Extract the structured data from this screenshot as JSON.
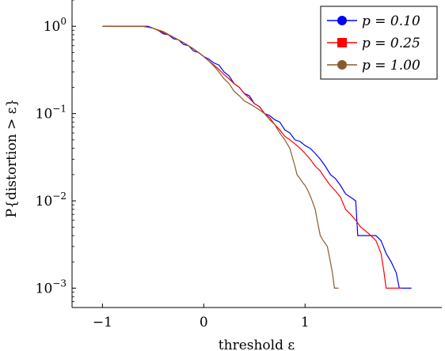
{
  "chart_data": {
    "type": "line",
    "title": "",
    "xlabel": "threshold ε",
    "ylabel": "P{distortion > ε}",
    "y_scale": "log",
    "xlim": [
      -1.3,
      2.35
    ],
    "ylim": [
      0.0006,
      2.0
    ],
    "x_ticks": [
      {
        "value": -1,
        "label": "−1"
      },
      {
        "value": 0,
        "label": "0"
      },
      {
        "value": 1,
        "label": "1"
      }
    ],
    "y_ticks": [
      {
        "value": 1,
        "base": "10",
        "exp": "0"
      },
      {
        "value": 0.1,
        "base": "10",
        "exp": "−1"
      },
      {
        "value": 0.01,
        "base": "10",
        "exp": "−2"
      },
      {
        "value": 0.001,
        "base": "10",
        "exp": "−3"
      }
    ],
    "grid": false,
    "legend_position": "top-right",
    "series": [
      {
        "name": "p = 0.10",
        "color": "#0000ff",
        "marker": "circle",
        "points": [
          [
            -1.0,
            1.0
          ],
          [
            -0.55,
            1.0
          ],
          [
            -0.5,
            0.95
          ],
          [
            -0.45,
            0.9
          ],
          [
            -0.4,
            0.82
          ],
          [
            -0.35,
            0.8
          ],
          [
            -0.3,
            0.72
          ],
          [
            -0.25,
            0.7
          ],
          [
            -0.2,
            0.62
          ],
          [
            -0.15,
            0.6
          ],
          [
            -0.1,
            0.52
          ],
          [
            -0.05,
            0.5
          ],
          [
            0.0,
            0.45
          ],
          [
            0.05,
            0.42
          ],
          [
            0.1,
            0.38
          ],
          [
            0.15,
            0.36
          ],
          [
            0.2,
            0.3
          ],
          [
            0.25,
            0.27
          ],
          [
            0.3,
            0.22
          ],
          [
            0.35,
            0.2
          ],
          [
            0.4,
            0.17
          ],
          [
            0.45,
            0.16
          ],
          [
            0.5,
            0.13
          ],
          [
            0.55,
            0.12
          ],
          [
            0.6,
            0.1
          ],
          [
            0.65,
            0.095
          ],
          [
            0.7,
            0.085
          ],
          [
            0.75,
            0.08
          ],
          [
            0.8,
            0.065
          ],
          [
            0.85,
            0.06
          ],
          [
            0.9,
            0.05
          ],
          [
            0.95,
            0.048
          ],
          [
            1.0,
            0.043
          ],
          [
            1.05,
            0.04
          ],
          [
            1.1,
            0.035
          ],
          [
            1.15,
            0.03
          ],
          [
            1.2,
            0.025
          ],
          [
            1.25,
            0.02
          ],
          [
            1.3,
            0.018
          ],
          [
            1.35,
            0.015
          ],
          [
            1.4,
            0.012
          ],
          [
            1.45,
            0.011
          ],
          [
            1.5,
            0.01
          ],
          [
            1.52,
            0.004
          ],
          [
            1.7,
            0.004
          ],
          [
            1.75,
            0.0035
          ],
          [
            1.8,
            0.0025
          ],
          [
            1.85,
            0.002
          ],
          [
            1.9,
            0.0015
          ],
          [
            1.93,
            0.001
          ],
          [
            2.05,
            0.001
          ]
        ]
      },
      {
        "name": "p = 0.25",
        "color": "#ff0000",
        "marker": "square",
        "points": [
          [
            -1.0,
            1.0
          ],
          [
            -0.6,
            1.0
          ],
          [
            -0.5,
            0.95
          ],
          [
            -0.4,
            0.85
          ],
          [
            -0.3,
            0.75
          ],
          [
            -0.2,
            0.65
          ],
          [
            -0.1,
            0.55
          ],
          [
            0.0,
            0.45
          ],
          [
            0.05,
            0.4
          ],
          [
            0.1,
            0.36
          ],
          [
            0.15,
            0.32
          ],
          [
            0.2,
            0.28
          ],
          [
            0.25,
            0.25
          ],
          [
            0.3,
            0.22
          ],
          [
            0.35,
            0.2
          ],
          [
            0.4,
            0.17
          ],
          [
            0.45,
            0.15
          ],
          [
            0.5,
            0.13
          ],
          [
            0.55,
            0.12
          ],
          [
            0.6,
            0.1
          ],
          [
            0.65,
            0.09
          ],
          [
            0.7,
            0.075
          ],
          [
            0.75,
            0.065
          ],
          [
            0.8,
            0.055
          ],
          [
            0.85,
            0.05
          ],
          [
            0.9,
            0.045
          ],
          [
            0.95,
            0.04
          ],
          [
            1.0,
            0.035
          ],
          [
            1.05,
            0.03
          ],
          [
            1.1,
            0.025
          ],
          [
            1.15,
            0.022
          ],
          [
            1.2,
            0.018
          ],
          [
            1.25,
            0.015
          ],
          [
            1.3,
            0.013
          ],
          [
            1.35,
            0.011
          ],
          [
            1.4,
            0.008
          ],
          [
            1.45,
            0.007
          ],
          [
            1.5,
            0.006
          ],
          [
            1.55,
            0.005
          ],
          [
            1.6,
            0.0045
          ],
          [
            1.65,
            0.004
          ],
          [
            1.7,
            0.0035
          ],
          [
            1.75,
            0.0025
          ],
          [
            1.78,
            0.0015
          ],
          [
            1.8,
            0.001
          ],
          [
            1.95,
            0.001
          ]
        ]
      },
      {
        "name": "p = 1.00",
        "color": "#8b5a2b",
        "marker": "circle",
        "points": [
          [
            -1.0,
            1.0
          ],
          [
            -0.6,
            1.0
          ],
          [
            -0.5,
            0.95
          ],
          [
            -0.4,
            0.87
          ],
          [
            -0.3,
            0.75
          ],
          [
            -0.2,
            0.65
          ],
          [
            -0.1,
            0.55
          ],
          [
            0.0,
            0.45
          ],
          [
            0.05,
            0.4
          ],
          [
            0.1,
            0.35
          ],
          [
            0.15,
            0.3
          ],
          [
            0.2,
            0.25
          ],
          [
            0.25,
            0.22
          ],
          [
            0.3,
            0.18
          ],
          [
            0.35,
            0.16
          ],
          [
            0.4,
            0.14
          ],
          [
            0.45,
            0.13
          ],
          [
            0.5,
            0.12
          ],
          [
            0.55,
            0.11
          ],
          [
            0.6,
            0.1
          ],
          [
            0.65,
            0.085
          ],
          [
            0.7,
            0.075
          ],
          [
            0.75,
            0.06
          ],
          [
            0.8,
            0.05
          ],
          [
            0.85,
            0.04
          ],
          [
            0.88,
            0.03
          ],
          [
            0.9,
            0.025
          ],
          [
            0.92,
            0.02
          ],
          [
            0.95,
            0.018
          ],
          [
            0.98,
            0.016
          ],
          [
            1.0,
            0.015
          ],
          [
            1.03,
            0.013
          ],
          [
            1.07,
            0.01
          ],
          [
            1.1,
            0.008
          ],
          [
            1.12,
            0.006
          ],
          [
            1.15,
            0.004
          ],
          [
            1.18,
            0.0035
          ],
          [
            1.22,
            0.003
          ],
          [
            1.25,
            0.002
          ],
          [
            1.27,
            0.0015
          ],
          [
            1.29,
            0.001
          ],
          [
            1.33,
            0.001
          ]
        ]
      }
    ]
  }
}
